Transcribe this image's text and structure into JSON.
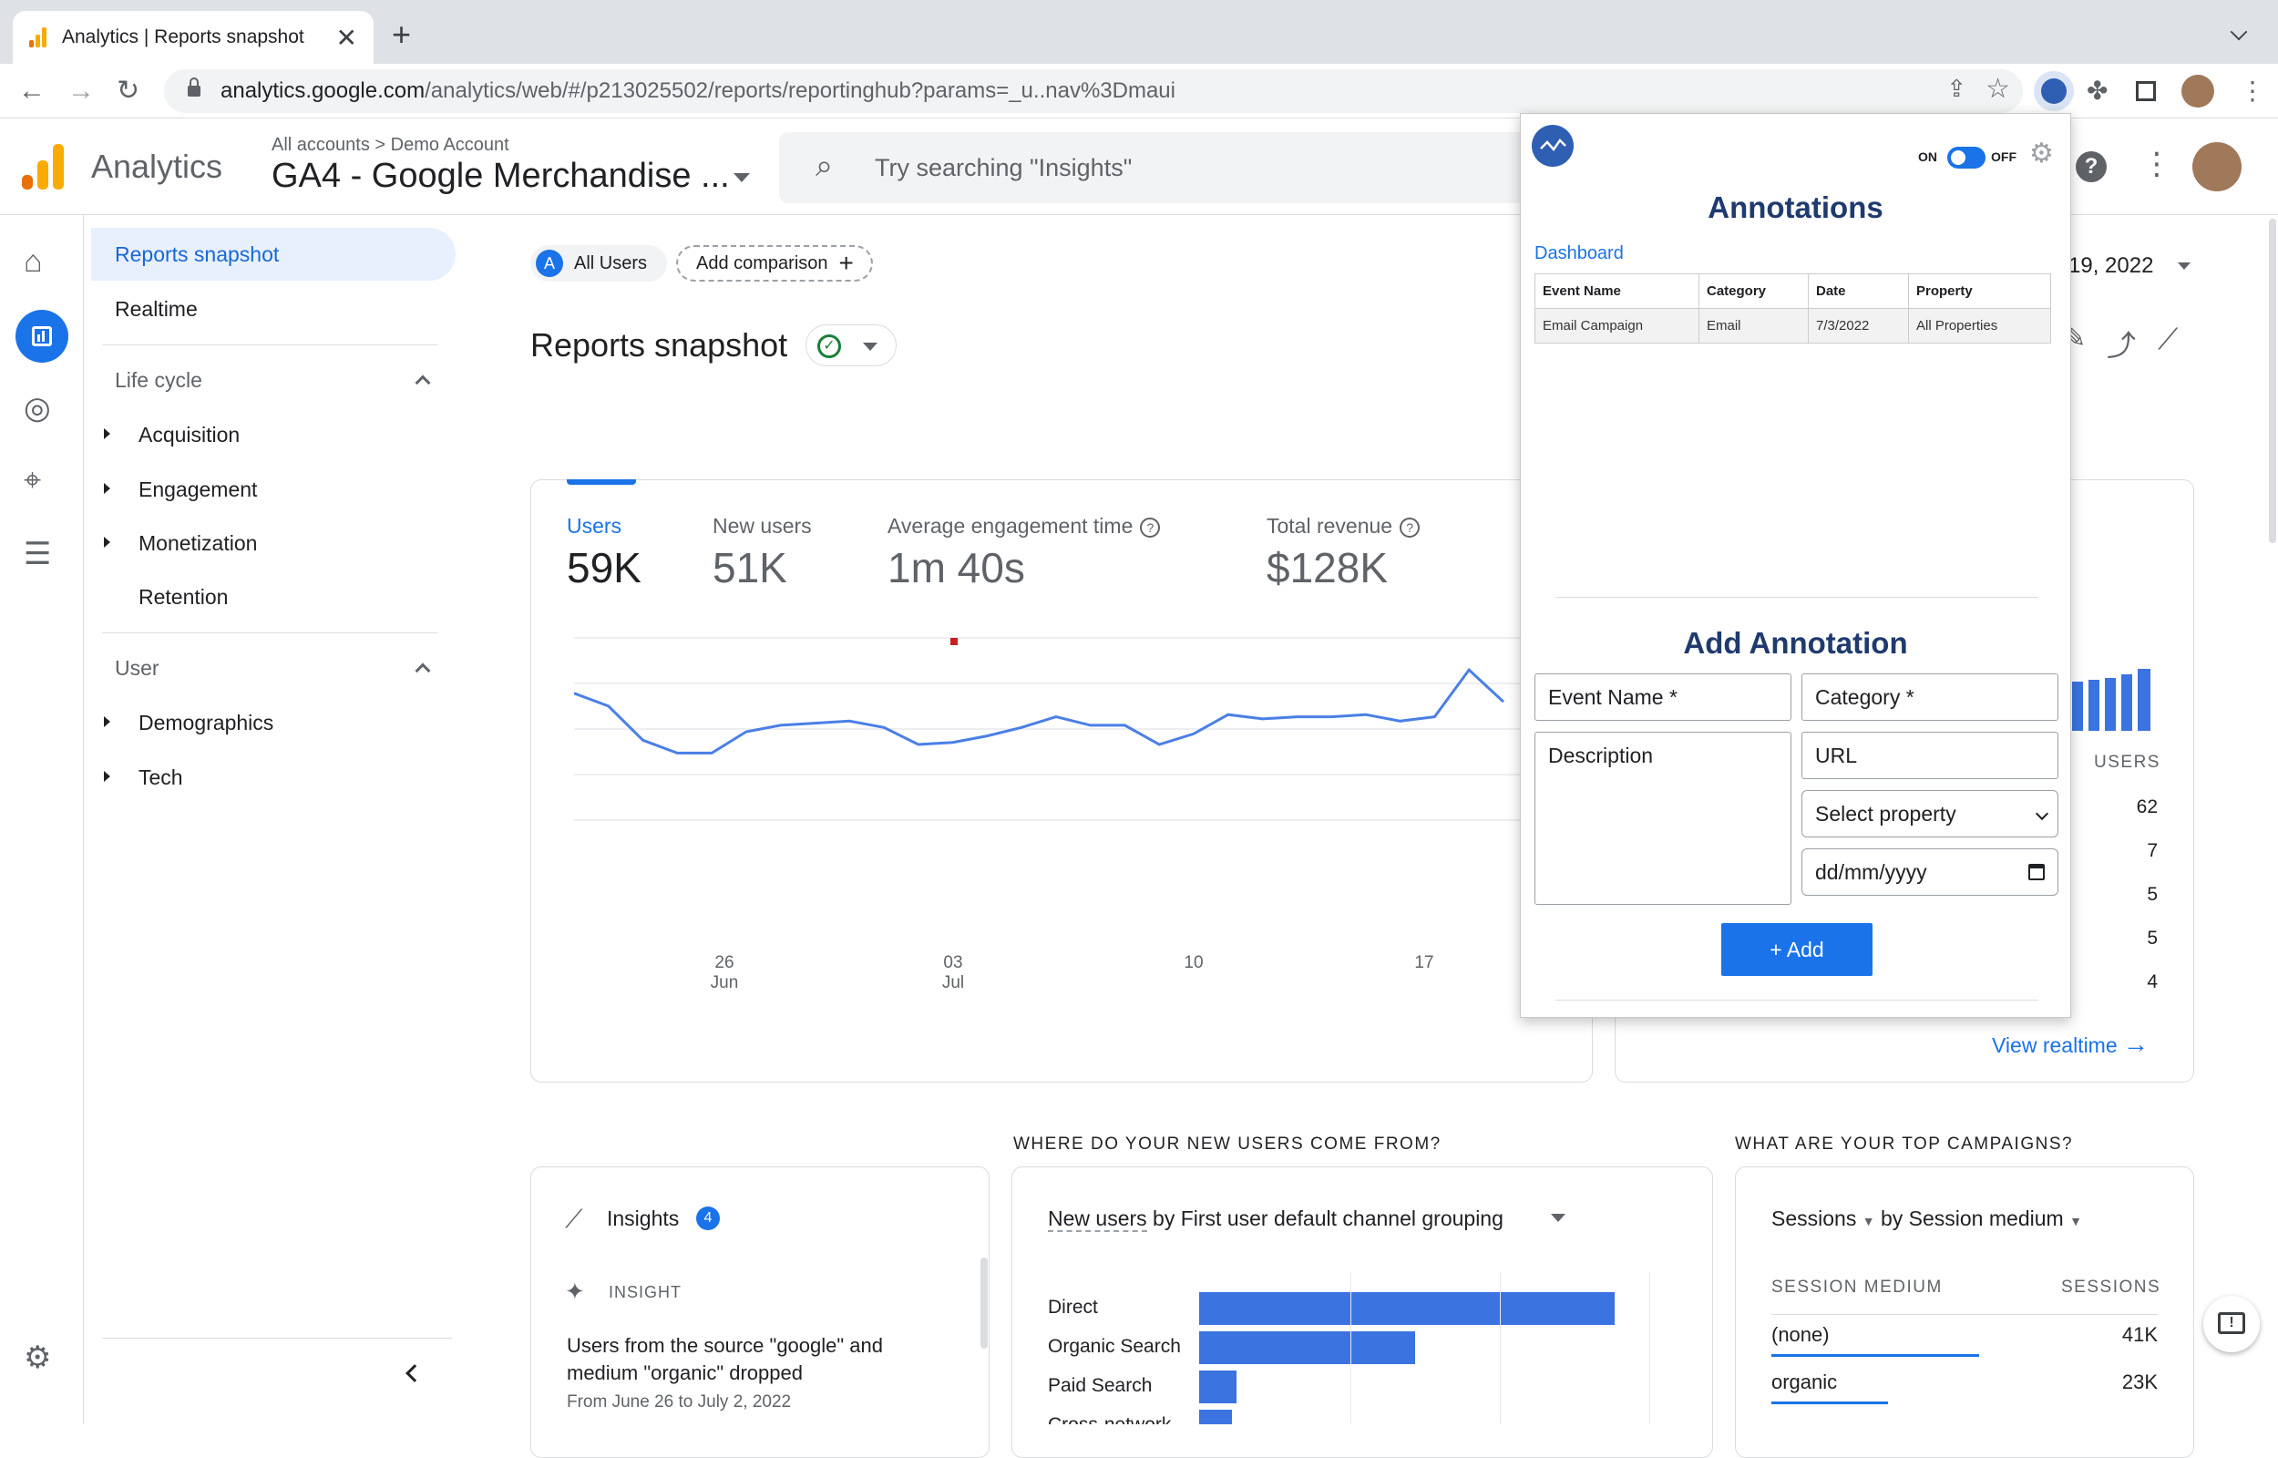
{
  "browser": {
    "tab_title": "Analytics | Reports snapshot",
    "url_host": "analytics.google.com",
    "url_path": "/analytics/web/#/p213025502/reports/reportinghub?params=_u..nav%3Dmaui"
  },
  "header": {
    "app_title": "Analytics",
    "breadcrumb_accounts": "All accounts",
    "breadcrumb_sep": ">",
    "breadcrumb_account": "Demo Account",
    "property_name": "GA4 - Google Merchandise ...",
    "search_placeholder": "Try searching \"Insights\""
  },
  "nav": {
    "reports_snapshot": "Reports snapshot",
    "realtime": "Realtime",
    "lifecycle": "Life cycle",
    "acquisition": "Acquisition",
    "engagement": "Engagement",
    "monetization": "Monetization",
    "retention": "Retention",
    "user": "User",
    "demographics": "Demographics",
    "tech": "Tech"
  },
  "main": {
    "all_users_avatar": "A",
    "all_users": "All Users",
    "add_comparison": "Add comparison",
    "page_title": "Reports snapshot",
    "date_range": "l 19, 2022",
    "metrics": [
      {
        "label": "Users",
        "value": "59K"
      },
      {
        "label": "New users",
        "value": "51K"
      },
      {
        "label": "Average engagement time",
        "value": "1m 40s"
      },
      {
        "label": "Total revenue",
        "value": "$128K"
      }
    ],
    "x_ticks": [
      {
        "day": "26",
        "month": "Jun"
      },
      {
        "day": "03",
        "month": "Jul"
      },
      {
        "day": "10",
        "month": ""
      },
      {
        "day": "17",
        "month": ""
      }
    ],
    "realtime_users_header": "USERS",
    "realtime_users": [
      "62",
      "7",
      "5",
      "5",
      "4"
    ],
    "view_realtime": "View realtime",
    "new_users_question": "WHERE DO YOUR NEW USERS COME FROM?",
    "campaigns_question": "WHAT ARE YOUR TOP CAMPAIGNS?",
    "insights_title": "Insights",
    "insights_count": "4",
    "insight_label": "INSIGHT",
    "insight_text_1": "Users from the source \"google\" and",
    "insight_text_2": "medium \"organic\" dropped",
    "insight_date": "From June 26 to July 2, 2022",
    "new_users_card_metric": "New users",
    "new_users_card_dim": "by First user default channel grouping",
    "campaigns_metric": "Sessions",
    "campaigns_dim": "by Session medium",
    "campaigns_col1": "SESSION MEDIUM",
    "campaigns_col2": "SESSIONS",
    "campaign_rows": [
      {
        "medium": "(none)",
        "sessions": "41K"
      },
      {
        "medium": "organic",
        "sessions": "23K"
      }
    ],
    "channels": [
      {
        "name": "Direct",
        "value": 100
      },
      {
        "name": "Organic Search",
        "value": 52
      },
      {
        "name": "Paid Search",
        "value": 9
      },
      {
        "name": "Cross-network",
        "value": 8
      }
    ]
  },
  "chart_data": {
    "type": "line",
    "series": [
      {
        "values": [
          74,
          68,
          52,
          46,
          46,
          56,
          59,
          60,
          61,
          58,
          50,
          51,
          54,
          58,
          63,
          59,
          59,
          50,
          55,
          64,
          62,
          63,
          63,
          64,
          61,
          63,
          85,
          70
        ]
      }
    ],
    "ylim": [
      0,
      100
    ]
  },
  "popup": {
    "toggle_on": "ON",
    "toggle_off": "OFF",
    "title": "Annotations",
    "dashboard_link": "Dashboard",
    "table_headers": [
      "Event Name",
      "Category",
      "Date",
      "Property"
    ],
    "rows": [
      {
        "event": "Email Campaign",
        "category": "Email",
        "date": "7/3/2022",
        "property": "All Properties"
      }
    ],
    "add_title": "Add Annotation",
    "event_name_ph": "Event Name *",
    "category_ph": "Category *",
    "description_ph": "Description",
    "url_ph": "URL",
    "select_property": "Select property",
    "date_ph": "dd/mm/yyyy",
    "add_button": "+ Add"
  },
  "colors": {
    "accent": "#1a73e8",
    "line": "#4a7fe6"
  }
}
